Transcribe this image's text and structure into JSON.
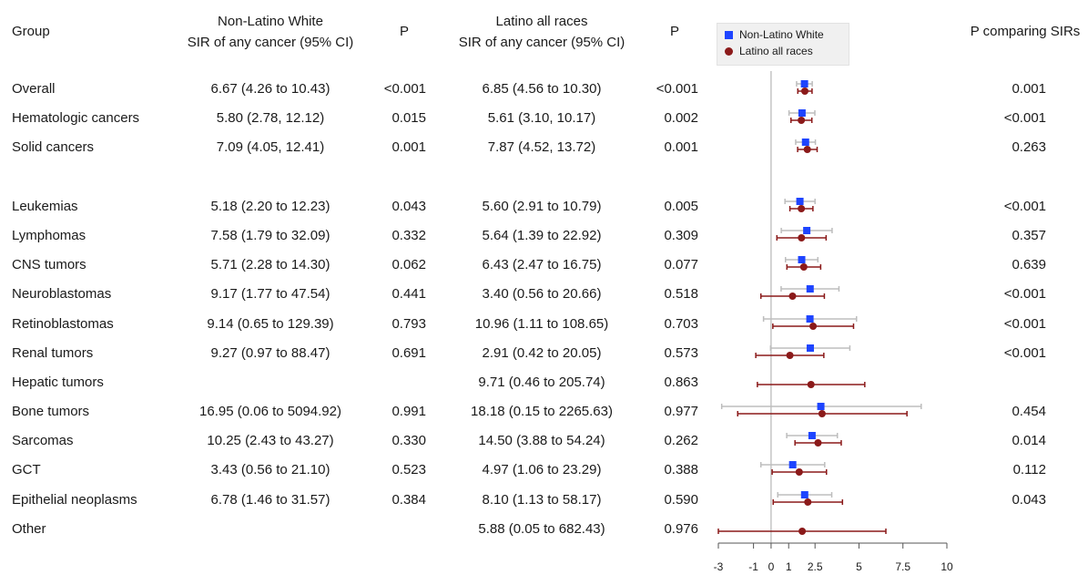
{
  "header": {
    "group": "Group",
    "nlw_line1": "Non-Latino White",
    "nlw_line2": "SIR of any cancer (95% CI)",
    "p1": "P",
    "lat_line1": "Latino all races",
    "lat_line2": "SIR of any cancer (95% CI)",
    "p2": "P",
    "pcomp": "P comparing SIRs"
  },
  "legend": {
    "nlw": "Non-Latino White",
    "lat": "Latino all races"
  },
  "colors": {
    "nlw_marker": "#1e44ff",
    "nlw_ci": "#bdbdbd",
    "lat": "#8b1a1a",
    "axis": "#555555"
  },
  "rows": [
    {
      "group": "Overall",
      "nlw_text": "6.67 (4.26 to 10.43)",
      "p1": "<0.001",
      "lat_text": "6.85 (4.56 to 10.30)",
      "p2": "<0.001",
      "pcomp": "0.001"
    },
    {
      "group": "Hematologic cancers",
      "nlw_text": "5.80 (2.78, 12.12)",
      "p1": "0.015",
      "lat_text": "5.61 (3.10, 10.17)",
      "p2": "0.002",
      "pcomp": "<0.001"
    },
    {
      "group": "Solid cancers",
      "nlw_text": "7.09 (4.05, 12.41)",
      "p1": "0.001",
      "lat_text": "7.87 (4.52, 13.72)",
      "p2": "0.001",
      "pcomp": "0.263"
    },
    {
      "group": "Leukemias",
      "nlw_text": "5.18 (2.20 to 12.23)",
      "p1": "0.043",
      "lat_text": "5.60 (2.91 to 10.79)",
      "p2": "0.005",
      "pcomp": "<0.001"
    },
    {
      "group": "Lymphomas",
      "nlw_text": "7.58 (1.79 to 32.09)",
      "p1": "0.332",
      "lat_text": "5.64 (1.39 to 22.92)",
      "p2": "0.309",
      "pcomp": "0.357"
    },
    {
      "group": "CNS tumors",
      "nlw_text": "5.71 (2.28 to 14.30)",
      "p1": "0.062",
      "lat_text": "6.43 (2.47 to 16.75)",
      "p2": "0.077",
      "pcomp": "0.639"
    },
    {
      "group": "Neuroblastomas",
      "nlw_text": "9.17 (1.77 to 47.54)",
      "p1": "0.441",
      "lat_text": "3.40 (0.56 to 20.66)",
      "p2": "0.518",
      "pcomp": "<0.001"
    },
    {
      "group": "Retinoblastomas",
      "nlw_text": "9.14 (0.65 to 129.39)",
      "p1": "0.793",
      "lat_text": "10.96 (1.11 to 108.65)",
      "p2": "0.703",
      "pcomp": "<0.001"
    },
    {
      "group": "Renal tumors",
      "nlw_text": "9.27 (0.97 to 88.47)",
      "p1": "0.691",
      "lat_text": "2.91 (0.42 to 20.05)",
      "p2": "0.573",
      "pcomp": "<0.001"
    },
    {
      "group": "Hepatic tumors",
      "nlw_text": "",
      "p1": "",
      "lat_text": "9.71 (0.46 to 205.74)",
      "p2": "0.863",
      "pcomp": ""
    },
    {
      "group": "Bone tumors",
      "nlw_text": "16.95 (0.06 to 5094.92)",
      "p1": "0.991",
      "lat_text": "18.18 (0.15 to 2265.63)",
      "p2": "0.977",
      "pcomp": "0.454"
    },
    {
      "group": "Sarcomas",
      "nlw_text": "10.25 (2.43 to 43.27)",
      "p1": "0.330",
      "lat_text": "14.50 (3.88 to 54.24)",
      "p2": "0.262",
      "pcomp": "0.014"
    },
    {
      "group": "GCT",
      "nlw_text": "3.43 (0.56 to 21.10)",
      "p1": "0.523",
      "lat_text": "4.97 (1.06 to 23.29)",
      "p2": "0.388",
      "pcomp": "0.112"
    },
    {
      "group": "Epithelial neoplasms",
      "nlw_text": "6.78 (1.46 to 31.57)",
      "p1": "0.384",
      "lat_text": "8.10 (1.13 to 58.17)",
      "p2": "0.590",
      "pcomp": "0.043"
    },
    {
      "group": "Other",
      "nlw_text": "",
      "p1": "",
      "lat_text": "5.88 (0.05 to 682.43)",
      "p2": "0.976",
      "pcomp": ""
    }
  ],
  "chart_data": {
    "type": "scatter",
    "subtype": "forest-plot",
    "xlabel": "",
    "scale": "log SIR",
    "xlim": [
      -3,
      10
    ],
    "xticks": [
      -3,
      -1,
      0,
      1,
      2.5,
      5,
      7.5,
      10
    ],
    "reference_line": 0,
    "grid": false,
    "legend_placement": "top",
    "categories": [
      "Overall",
      "Hematologic cancers",
      "Solid cancers",
      "Leukemias",
      "Lymphomas",
      "CNS tumors",
      "Neuroblastomas",
      "Retinoblastomas",
      "Renal tumors",
      "Hepatic tumors",
      "Bone tumors",
      "Sarcomas",
      "GCT",
      "Epithelial neoplasms",
      "Other"
    ],
    "series": [
      {
        "name": "Non-Latino White",
        "marker": "square",
        "values": [
          1.9,
          1.76,
          1.96,
          1.64,
          2.03,
          1.74,
          2.22,
          2.21,
          2.23,
          null,
          2.83,
          2.33,
          1.23,
          1.91,
          null
        ],
        "lower": [
          1.45,
          1.02,
          1.4,
          0.79,
          0.58,
          0.82,
          0.57,
          -0.43,
          -0.03,
          null,
          -2.81,
          0.89,
          -0.58,
          0.38,
          null
        ],
        "upper": [
          2.34,
          2.49,
          2.52,
          2.5,
          3.47,
          2.66,
          3.86,
          4.86,
          4.48,
          null,
          8.54,
          3.77,
          3.05,
          3.45,
          null
        ]
      },
      {
        "name": "Latino all races",
        "marker": "circle",
        "values": [
          1.92,
          1.72,
          2.06,
          1.72,
          1.73,
          1.86,
          1.22,
          2.39,
          1.07,
          2.27,
          2.9,
          2.67,
          1.6,
          2.09,
          1.77
        ],
        "lower": [
          1.52,
          1.13,
          1.51,
          1.07,
          0.33,
          0.9,
          -0.58,
          0.1,
          -0.87,
          -0.78,
          -1.9,
          1.36,
          0.06,
          0.12,
          -3.0
        ],
        "upper": [
          2.33,
          2.32,
          2.62,
          2.38,
          3.13,
          2.82,
          3.03,
          4.69,
          3.0,
          5.33,
          7.73,
          3.99,
          3.15,
          4.06,
          6.53
        ]
      }
    ]
  }
}
